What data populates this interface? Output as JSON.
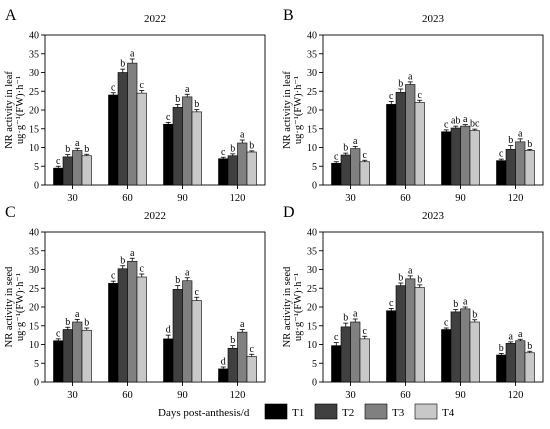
{
  "colors": {
    "T1": "#000000",
    "T2": "#404040",
    "T3": "#808080",
    "T4": "#c8c8c8"
  },
  "chart_data": [
    {
      "type": "bar",
      "letter": "A",
      "title": "2022",
      "ylabel": "NR activity in leaf",
      "ylabel2": "ug·g⁻¹(FW)·h⁻¹",
      "categories": [
        "30",
        "60",
        "90",
        "120"
      ],
      "ylim": [
        0,
        40
      ],
      "yticks": [
        0,
        5,
        10,
        15,
        20,
        25,
        30,
        35,
        40
      ],
      "series": [
        {
          "name": "T1",
          "values": [
            4.5,
            24.0,
            16.2,
            7.0
          ],
          "errors": [
            0.5,
            0.6,
            0.5,
            0.4
          ],
          "letters": [
            "c",
            "c",
            "c",
            "c"
          ]
        },
        {
          "name": "T2",
          "values": [
            7.5,
            30.0,
            20.7,
            7.8
          ],
          "errors": [
            0.6,
            0.9,
            0.8,
            0.5
          ],
          "letters": [
            "b",
            "b",
            "b",
            "b"
          ]
        },
        {
          "name": "T3",
          "values": [
            9.2,
            32.5,
            23.5,
            11.2
          ],
          "errors": [
            0.6,
            1.1,
            0.7,
            0.8
          ],
          "letters": [
            "a",
            "a",
            "a",
            "a"
          ]
        },
        {
          "name": "T4",
          "values": [
            7.8,
            24.5,
            19.5,
            8.8
          ],
          "errors": [
            0.4,
            0.7,
            0.6,
            0.3
          ],
          "letters": [
            "b",
            "c",
            "b",
            "b"
          ]
        }
      ]
    },
    {
      "type": "bar",
      "letter": "B",
      "title": "2023",
      "ylabel": "NR activity in leaf",
      "ylabel2": "ug·g⁻¹(FW)·h⁻¹",
      "categories": [
        "30",
        "60",
        "90",
        "120"
      ],
      "ylim": [
        0,
        40
      ],
      "yticks": [
        0,
        5,
        10,
        15,
        20,
        25,
        30,
        35,
        40
      ],
      "series": [
        {
          "name": "T1",
          "values": [
            5.8,
            21.5,
            14.2,
            6.5
          ],
          "errors": [
            0.4,
            0.8,
            0.5,
            0.4
          ],
          "letters": [
            "c",
            "c",
            "c",
            "c"
          ]
        },
        {
          "name": "T2",
          "values": [
            8.0,
            24.7,
            15.2,
            9.5
          ],
          "errors": [
            0.5,
            0.9,
            0.5,
            1.0
          ],
          "letters": [
            "b",
            "b",
            "ab",
            "b"
          ]
        },
        {
          "name": "T3",
          "values": [
            9.7,
            26.8,
            15.7,
            11.5
          ],
          "errors": [
            0.6,
            0.7,
            0.4,
            0.8
          ],
          "letters": [
            "a",
            "a",
            "a",
            "a"
          ]
        },
        {
          "name": "T4",
          "values": [
            6.2,
            22.0,
            14.5,
            9.2
          ],
          "errors": [
            0.4,
            0.6,
            0.4,
            0.3
          ],
          "letters": [
            "c",
            "c",
            "bc",
            "b"
          ]
        }
      ]
    },
    {
      "type": "bar",
      "letter": "C",
      "title": "2022",
      "ylabel": "NR activity in seed",
      "ylabel2": "ug·g⁻¹(FW)·h⁻¹",
      "categories": [
        "30",
        "60",
        "90",
        "120"
      ],
      "ylim": [
        0,
        40
      ],
      "yticks": [
        0,
        5,
        10,
        15,
        20,
        25,
        30,
        35,
        40
      ],
      "series": [
        {
          "name": "T1",
          "values": [
            11.0,
            26.3,
            11.5,
            3.5
          ],
          "errors": [
            0.5,
            0.6,
            1.0,
            0.5
          ],
          "letters": [
            "c",
            "c",
            "d",
            "d"
          ]
        },
        {
          "name": "T2",
          "values": [
            14.0,
            30.2,
            24.7,
            9.0
          ],
          "errors": [
            0.6,
            0.8,
            1.0,
            0.7
          ],
          "letters": [
            "b",
            "b",
            "b",
            "b"
          ]
        },
        {
          "name": "T3",
          "values": [
            16.0,
            32.2,
            27.0,
            13.3
          ],
          "errors": [
            0.7,
            0.8,
            0.8,
            0.7
          ],
          "letters": [
            "a",
            "a",
            "a",
            "a"
          ]
        },
        {
          "name": "T4",
          "values": [
            13.8,
            28.0,
            21.7,
            6.8
          ],
          "errors": [
            0.6,
            0.8,
            0.9,
            0.6
          ],
          "letters": [
            "b",
            "c",
            "c",
            "c"
          ]
        }
      ]
    },
    {
      "type": "bar",
      "letter": "D",
      "title": "2023",
      "ylabel": "NR activity in seed",
      "ylabel2": "ug·g⁻¹(FW)·h⁻¹",
      "categories": [
        "30",
        "60",
        "90",
        "120"
      ],
      "ylim": [
        0,
        40
      ],
      "yticks": [
        0,
        5,
        10,
        15,
        20,
        25,
        30,
        35,
        40
      ],
      "series": [
        {
          "name": "T1",
          "values": [
            9.7,
            19.0,
            14.0,
            7.2
          ],
          "errors": [
            0.8,
            0.6,
            0.4,
            0.4
          ],
          "letters": [
            "c",
            "c",
            "c",
            "b"
          ]
        },
        {
          "name": "T2",
          "values": [
            14.7,
            25.7,
            18.7,
            10.3
          ],
          "errors": [
            1.0,
            0.7,
            0.6,
            0.4
          ],
          "letters": [
            "b",
            "b",
            "b",
            "a"
          ]
        },
        {
          "name": "T3",
          "values": [
            16.0,
            27.5,
            19.5,
            11.0
          ],
          "errors": [
            0.8,
            0.8,
            0.5,
            0.4
          ],
          "letters": [
            "a",
            "a",
            "a",
            "a"
          ]
        },
        {
          "name": "T4",
          "values": [
            11.5,
            25.2,
            16.0,
            7.8
          ],
          "errors": [
            0.7,
            0.7,
            0.6,
            0.4
          ],
          "letters": [
            "c",
            "b",
            "b",
            "b"
          ]
        }
      ]
    }
  ],
  "legend": {
    "xlabel": "Days post-anthesis/d",
    "items": [
      "T1",
      "T2",
      "T3",
      "T4"
    ]
  }
}
